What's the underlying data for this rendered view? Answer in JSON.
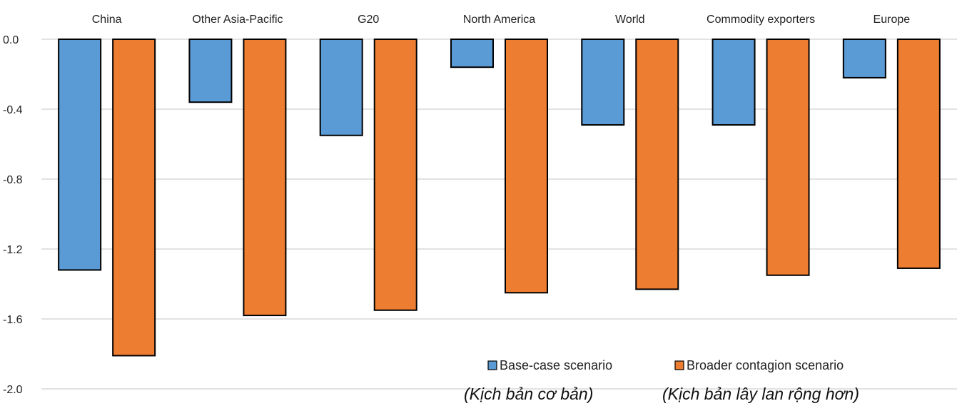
{
  "chart_data": {
    "type": "bar",
    "categories": [
      "China",
      "Other Asia-Pacific",
      "G20",
      "North America",
      "World",
      "Commodity exporters",
      "Europe"
    ],
    "series": [
      {
        "name": "Base-case scenario",
        "color": "#5b9bd5",
        "values": [
          -1.32,
          -0.36,
          -0.55,
          -0.16,
          -0.49,
          -0.49,
          -0.22
        ]
      },
      {
        "name": "Broader contagion scenario",
        "color": "#ed7d31",
        "values": [
          -1.81,
          -1.58,
          -1.55,
          -1.45,
          -1.43,
          -1.35,
          -1.31
        ]
      }
    ],
    "ylim": [
      -2.0,
      0.0
    ],
    "yticks": [
      "0.0",
      "-0.4",
      "-0.8",
      "-1.2",
      "-1.6",
      "-2.0"
    ],
    "ytick_values": [
      0.0,
      -0.4,
      -0.8,
      -1.2,
      -1.6,
      -2.0
    ],
    "grid": true,
    "category_labels_position": "top",
    "legend_position": "bottom-right"
  },
  "notes": [
    "(Kịch bản cơ bản)",
    "(Kịch bản lây lan rộng hơn)"
  ]
}
